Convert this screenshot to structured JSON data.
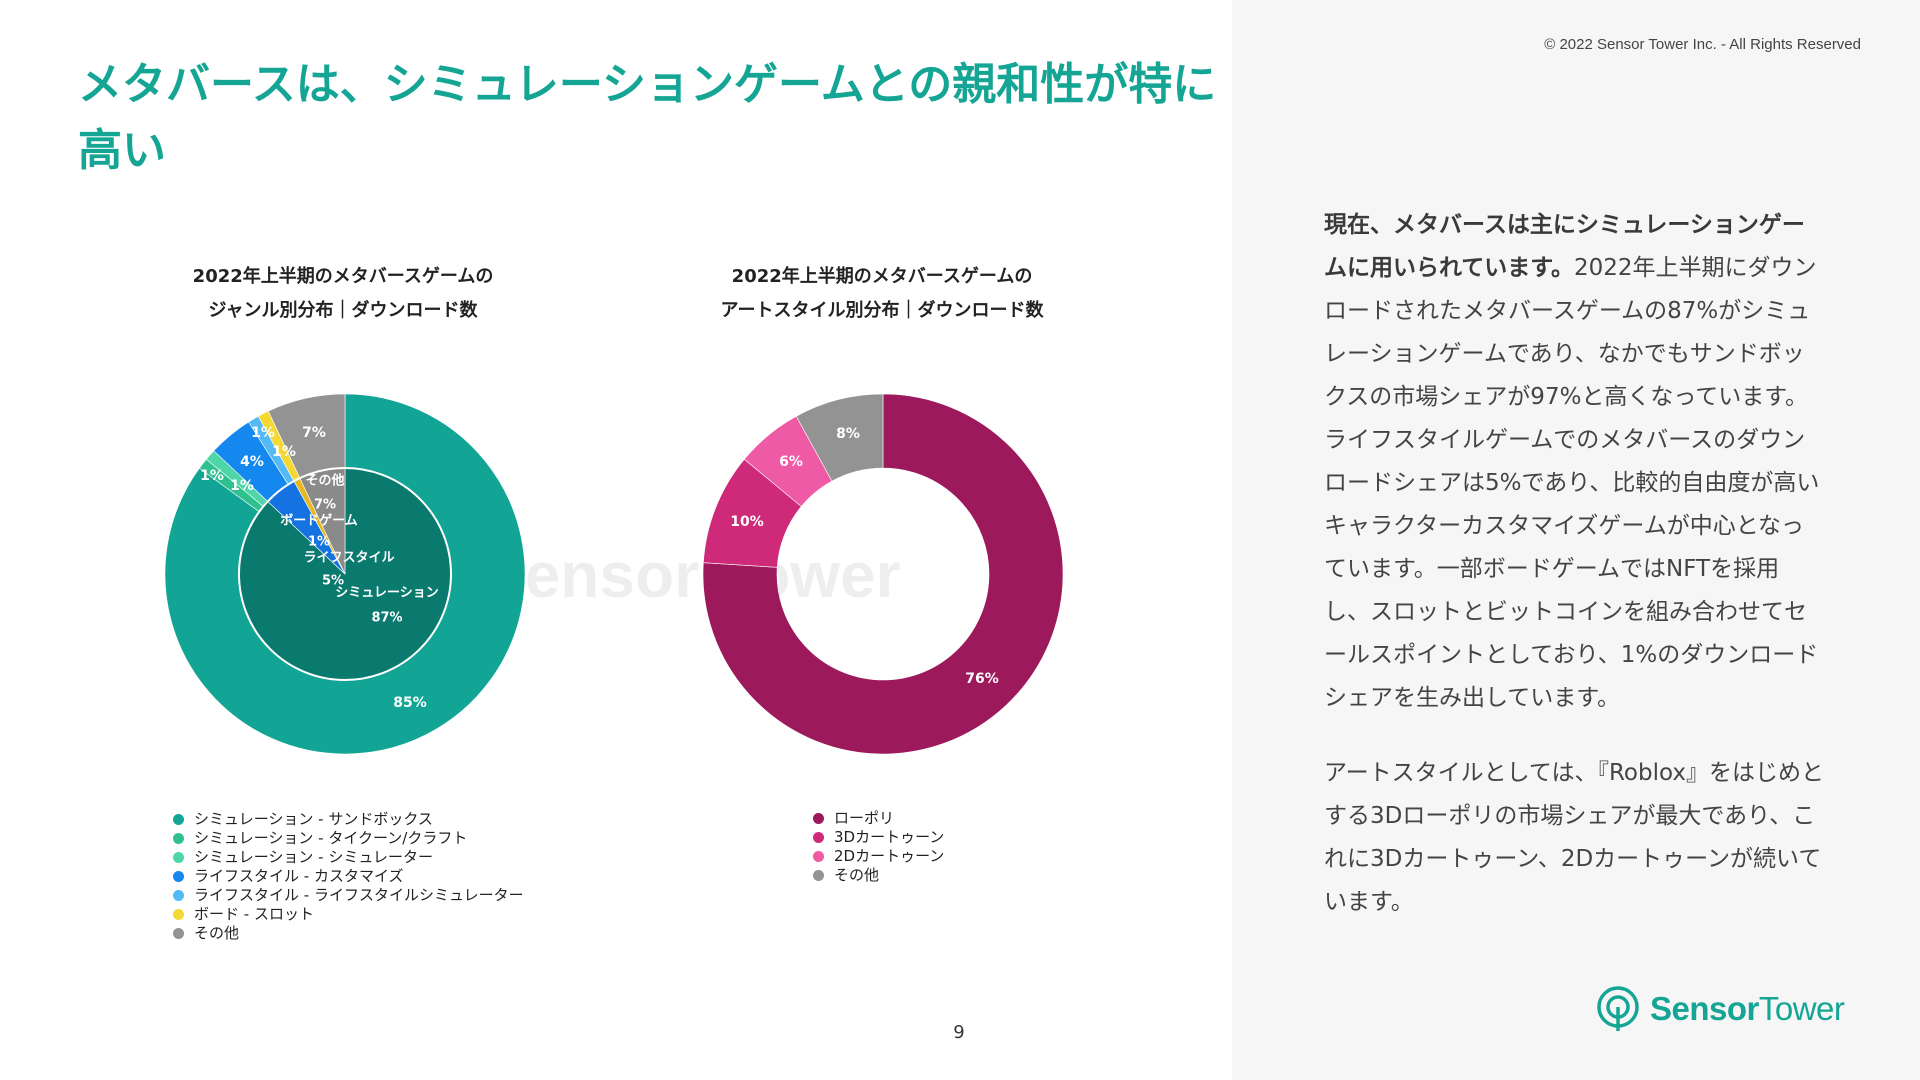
{
  "copyright": "© 2022 Sensor Tower Inc. - All Rights Reserved",
  "page_title": "メタバースは、シミュレーションゲームとの親和性が特に高い",
  "page_number": "9",
  "logo": {
    "text_bold": "Sensor",
    "text_light": "Tower"
  },
  "watermark": "Sensor Tower",
  "body": {
    "p1_lead": "現在、メタバースは主にシミュレーションゲームに用いられています。",
    "p1_rest": "2022年上半期にダウンロードされたメタバースゲームの87%がシミュレーションゲームであり、なかでもサンドボックスの市場シェアが97%と高くなっています。ライフスタイルゲームでのメタバースのダウンロードシェアは5%であり、比較的自由度が高いキャラクターカスタマイズゲームが中心となっています。一部ボードゲームではNFTを採用し、スロットとビットコインを組み合わせてセールスポイントとしており、1%のダウンロードシェアを生み出しています。",
    "p2": "アートスタイルとしては、『Roblox』をはじめとする3Dローポリの市場シェアが最大であり、これに3Dカートゥーン、2Dカートゥーンが続いています。"
  },
  "chart_data": [
    {
      "type": "pie",
      "title_line1": "2022年上半期のメタバースゲームの",
      "title_line2": "ジャンル別分布｜ダウンロード数",
      "outer_series": [
        {
          "name": "シミュレーション - サンドボックス",
          "value": 85,
          "label": "85%",
          "color": "#12a595"
        },
        {
          "name": "シミュレーション - タイクーン/クラフト",
          "value": 1,
          "label": "1%",
          "color": "#2fc08e"
        },
        {
          "name": "シミュレーション - シミュレーター",
          "value": 1,
          "label": "1%",
          "color": "#4fd6a8"
        },
        {
          "name": "ライフスタイル - カスタマイズ",
          "value": 4,
          "label": "4%",
          "color": "#1488ee"
        },
        {
          "name": "ライフスタイル - ライフスタイルシミュレーター",
          "value": 1,
          "label": "1%",
          "color": "#53baf6"
        },
        {
          "name": "ボード - スロット",
          "value": 1,
          "label": "1%",
          "color": "#f5d932"
        },
        {
          "name": "その他",
          "value": 7,
          "label": "7%",
          "color": "#939393"
        }
      ],
      "inner_series": [
        {
          "name": "シミュレーション",
          "value": 87,
          "label": "87%",
          "color": "#0b7a6e"
        },
        {
          "name": "ライフスタイル",
          "value": 5,
          "label": "5%",
          "color": "#1473e0"
        },
        {
          "name": "ボードゲーム",
          "value": 1,
          "label": "1%",
          "color": "#e8b820"
        },
        {
          "name": "その他",
          "value": 7,
          "label": "7%",
          "color": "#8a8a8a"
        }
      ]
    },
    {
      "type": "pie",
      "title_line1": "2022年上半期のメタバースゲームの",
      "title_line2": "アートスタイル別分布｜ダウンロード数",
      "series": [
        {
          "name": "ローポリ",
          "value": 76,
          "label": "76%",
          "color": "#9c1a5c"
        },
        {
          "name": "3Dカートゥーン",
          "value": 10,
          "label": "10%",
          "color": "#cf2a7a"
        },
        {
          "name": "2Dカートゥーン",
          "value": 6,
          "label": "6%",
          "color": "#ee5aa5"
        },
        {
          "name": "その他",
          "value": 8,
          "label": "8%",
          "color": "#939393"
        }
      ]
    }
  ]
}
